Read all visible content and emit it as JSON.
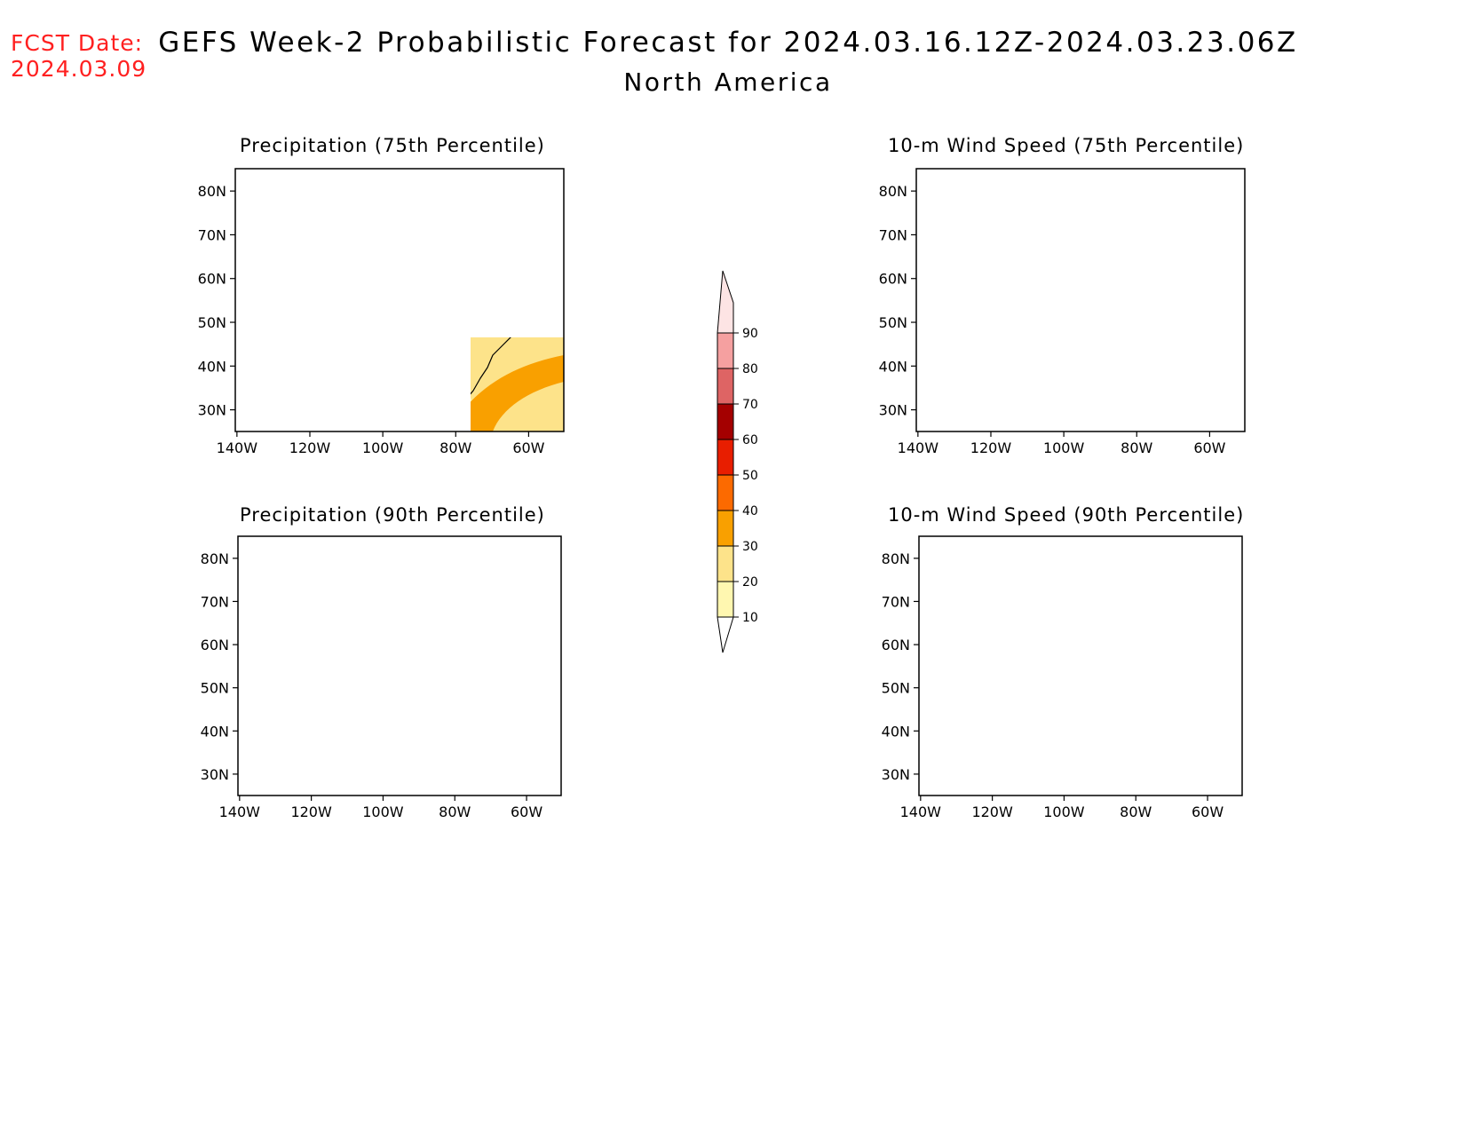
{
  "header": {
    "fcst_line1": "FCST Date:",
    "fcst_line2": "2024.03.09",
    "title": "GEFS Week-2 Probabilistic Forecast for 2024.03.16.12Z-2024.03.23.06Z",
    "subtitle": "North America"
  },
  "panels": [
    {
      "title": "Precipitation (75th Percentile)"
    },
    {
      "title": "10-m Wind Speed (75th Percentile)"
    },
    {
      "title": "Precipitation (90th Percentile)"
    },
    {
      "title": "10-m Wind Speed (90th Percentile)"
    }
  ],
  "axes": {
    "lat_labels": [
      "80N",
      "70N",
      "60N",
      "50N",
      "40N",
      "30N"
    ],
    "lon_labels": [
      "140W",
      "120W",
      "100W",
      "80W",
      "60W"
    ]
  },
  "colorbar": {
    "levels": [
      "10",
      "20",
      "30",
      "40",
      "50",
      "60",
      "70",
      "80",
      "90"
    ],
    "colors": [
      "#fff7b0",
      "#fde38a",
      "#f9a000",
      "#fc6a00",
      "#e81e00",
      "#a40000",
      "#de6464",
      "#f5a0a0",
      "#fde4e4"
    ],
    "below_color": "#ffffff"
  }
}
